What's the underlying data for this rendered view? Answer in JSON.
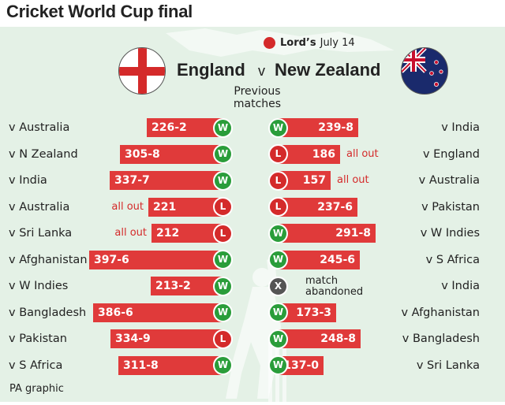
{
  "title": "Cricket World Cup final",
  "venue": {
    "name": "Lord’s",
    "date": "July 14"
  },
  "left_team": "England",
  "versus": "v",
  "right_team": "New Zealand",
  "subtitle_line1": "Previous",
  "subtitle_line2": "matches",
  "footer": "PA graphic",
  "colors": {
    "win": "#2a9d3a",
    "loss": "#d42a2a",
    "abandoned": "#555555",
    "bar": "#e03a3a",
    "panel": "#e4f1e6"
  },
  "chart_data": {
    "type": "bar",
    "scale_max": 400,
    "england": [
      {
        "opponent": "v Australia",
        "runs": 226,
        "score": "226-2",
        "result": "W",
        "note": ""
      },
      {
        "opponent": "v N Zealand",
        "runs": 305,
        "score": "305-8",
        "result": "W",
        "note": ""
      },
      {
        "opponent": "v India",
        "runs": 337,
        "score": "337-7",
        "result": "W",
        "note": ""
      },
      {
        "opponent": "v Australia",
        "runs": 221,
        "score": "221",
        "result": "L",
        "note": "all out"
      },
      {
        "opponent": "v Sri Lanka",
        "runs": 212,
        "score": "212",
        "result": "L",
        "note": "all out"
      },
      {
        "opponent": "v Afghanistan",
        "runs": 397,
        "score": "397-6",
        "result": "W",
        "note": ""
      },
      {
        "opponent": "v W Indies",
        "runs": 213,
        "score": "213-2",
        "result": "W",
        "note": ""
      },
      {
        "opponent": "v Bangladesh",
        "runs": 386,
        "score": "386-6",
        "result": "W",
        "note": ""
      },
      {
        "opponent": "v Pakistan",
        "runs": 334,
        "score": "334-9",
        "result": "L",
        "note": ""
      },
      {
        "opponent": "v S Africa",
        "runs": 311,
        "score": "311-8",
        "result": "W",
        "note": ""
      }
    ],
    "new_zealand": [
      {
        "opponent": "v India",
        "runs": 239,
        "score": "239-8",
        "result": "W",
        "note": ""
      },
      {
        "opponent": "v England",
        "runs": 186,
        "score": "186",
        "result": "L",
        "note": "all out"
      },
      {
        "opponent": "v Australia",
        "runs": 157,
        "score": "157",
        "result": "L",
        "note": "all out"
      },
      {
        "opponent": "v Pakistan",
        "runs": 237,
        "score": "237-6",
        "result": "L",
        "note": ""
      },
      {
        "opponent": "v W Indies",
        "runs": 291,
        "score": "291-8",
        "result": "W",
        "note": ""
      },
      {
        "opponent": "v S Africa",
        "runs": 245,
        "score": "245-6",
        "result": "W",
        "note": ""
      },
      {
        "opponent": "v India",
        "runs": null,
        "score": "",
        "result": "X",
        "note": "match abandoned"
      },
      {
        "opponent": "v Afghanistan",
        "runs": 173,
        "score": "173-3",
        "result": "W",
        "note": ""
      },
      {
        "opponent": "v Bangladesh",
        "runs": 248,
        "score": "248-8",
        "result": "W",
        "note": ""
      },
      {
        "opponent": "v Sri Lanka",
        "runs": 137,
        "score": "137-0",
        "result": "W",
        "note": ""
      }
    ]
  }
}
